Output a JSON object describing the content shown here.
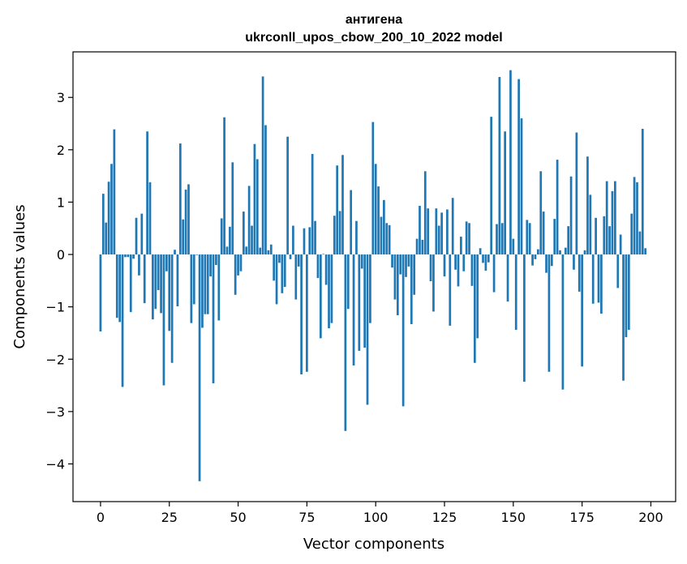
{
  "chart_data": {
    "type": "bar",
    "title": "антигена",
    "subtitle": "ukrconll_upos_cbow_200_10_2022 model",
    "xlabel": "Vector components",
    "ylabel": "Components values",
    "xlim": [
      -10,
      209
    ],
    "ylim": [
      -4.72,
      3.87
    ],
    "xticks": [
      0,
      25,
      50,
      75,
      100,
      125,
      150,
      175,
      200
    ],
    "xtick_labels": [
      "0",
      "25",
      "50",
      "75",
      "100",
      "125",
      "150",
      "175",
      "200"
    ],
    "yticks": [
      -4,
      -3,
      -2,
      -1,
      0,
      1,
      2,
      3
    ],
    "ytick_labels": [
      "−4",
      "−3",
      "−2",
      "−1",
      "0",
      "1",
      "2",
      "3"
    ],
    "bar_color": "#1f77b4",
    "grid": false,
    "legend": "none",
    "values": [
      -1.47,
      1.16,
      0.61,
      1.39,
      1.73,
      2.39,
      -1.21,
      -1.29,
      -2.53,
      -0.05,
      -0.05,
      -1.1,
      -0.08,
      0.7,
      -0.4,
      0.78,
      -0.93,
      2.35,
      1.38,
      -1.24,
      -1.04,
      -0.68,
      -1.12,
      -2.5,
      -0.32,
      -1.46,
      -2.07,
      0.09,
      -0.99,
      2.12,
      0.67,
      1.24,
      1.34,
      -1.31,
      -0.95,
      -0.01,
      -4.33,
      -1.4,
      -1.14,
      -1.14,
      -0.42,
      -2.46,
      -0.2,
      -1.26,
      0.69,
      2.62,
      0.15,
      0.53,
      1.76,
      -0.77,
      -0.4,
      -0.32,
      0.82,
      0.15,
      1.31,
      0.55,
      2.11,
      1.82,
      0.13,
      3.4,
      2.47,
      0.08,
      0.19,
      -0.5,
      -0.95,
      -0.16,
      -0.74,
      -0.62,
      2.25,
      -0.09,
      0.55,
      -0.86,
      -0.23,
      -2.29,
      0.5,
      -2.24,
      0.52,
      1.92,
      0.64,
      -0.45,
      -1.6,
      0.01,
      -0.58,
      -1.41,
      -1.31,
      0.74,
      1.7,
      0.83,
      1.9,
      -3.37,
      -1.04,
      1.23,
      -2.12,
      0.64,
      -1.84,
      -0.27,
      -1.78,
      -2.87,
      -1.31,
      2.53,
      1.73,
      1.3,
      0.72,
      1.04,
      0.6,
      0.56,
      -0.25,
      -0.86,
      -1.16,
      -0.38,
      -2.9,
      -0.43,
      -0.23,
      -1.33,
      -0.77,
      0.3,
      0.93,
      0.28,
      1.59,
      0.88,
      -0.51,
      -1.09,
      0.88,
      0.55,
      0.8,
      -0.42,
      0.86,
      -1.36,
      1.08,
      -0.29,
      -0.61,
      0.34,
      -0.32,
      0.63,
      0.6,
      -0.6,
      -2.07,
      -1.6,
      0.12,
      -0.16,
      -0.31,
      -0.15,
      2.63,
      -0.72,
      0.58,
      3.39,
      0.6,
      2.35,
      -0.9,
      3.52,
      0.3,
      -1.44,
      3.35,
      2.6,
      -2.43,
      0.66,
      0.6,
      -0.21,
      -0.09,
      0.1,
      1.59,
      0.82,
      -0.35,
      -2.24,
      -0.22,
      0.68,
      1.81,
      0.08,
      -2.58,
      0.13,
      0.54,
      1.49,
      -0.29,
      2.33,
      -0.71,
      -2.14,
      0.08,
      1.87,
      1.14,
      -0.94,
      0.7,
      -0.92,
      -1.13,
      0.73,
      1.4,
      0.54,
      1.21,
      1.4,
      -0.64,
      0.38,
      -2.41,
      -1.58,
      -1.44,
      0.78,
      1.48,
      1.38,
      0.44,
      2.4,
      0.12
    ]
  }
}
